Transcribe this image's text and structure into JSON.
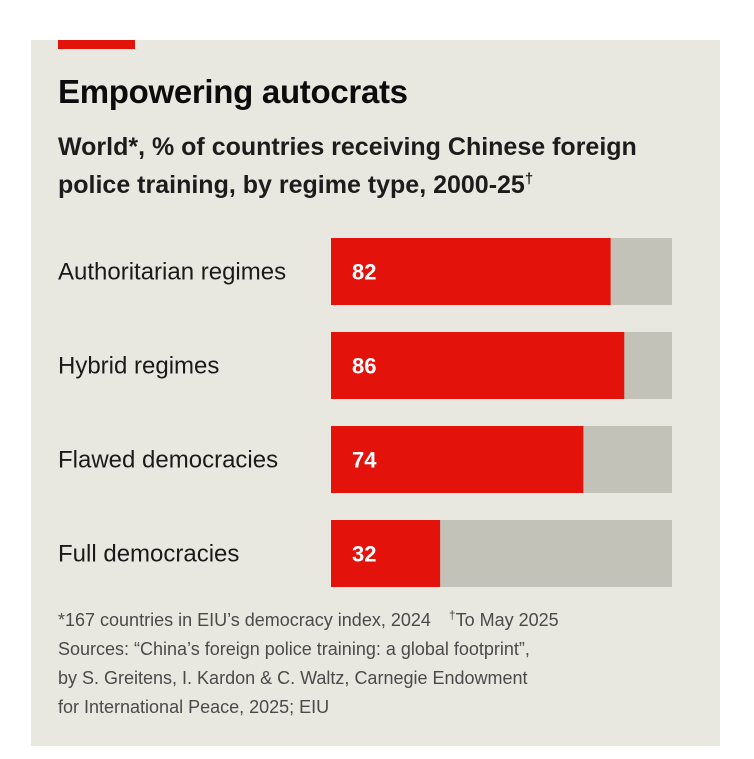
{
  "header": {
    "title": "Empowering autocrats",
    "subtitle_main": "World*, % of countries receiving Chinese foreign police training, by regime type, 2000-25",
    "subtitle_mark": "†"
  },
  "colors": {
    "accent": "#e3120b",
    "bar": "#e3120b",
    "track": "#c3c2b8",
    "background": "#e9e8e0"
  },
  "chart_data": {
    "type": "bar",
    "orientation": "horizontal",
    "title": "Empowering autocrats",
    "subtitle": "World*, % of countries receiving Chinese foreign police training, by regime type, 2000-25†",
    "categories": [
      "Authoritarian regimes",
      "Hybrid regimes",
      "Flawed democracies",
      "Full democracies"
    ],
    "values": [
      82,
      86,
      74,
      32
    ],
    "xlim": [
      0,
      100
    ],
    "unit": "%",
    "grid": false
  },
  "footnotes": {
    "note1": "*167 countries in EIU’s democracy index, 2024",
    "note2_mark": "†",
    "note2": "To May 2025",
    "sources": [
      "Sources: “China’s foreign police training: a global footprint”,",
      "by S. Greitens, I. Kardon & C. Waltz, Carnegie Endowment",
      "for International Peace, 2025; EIU"
    ]
  }
}
